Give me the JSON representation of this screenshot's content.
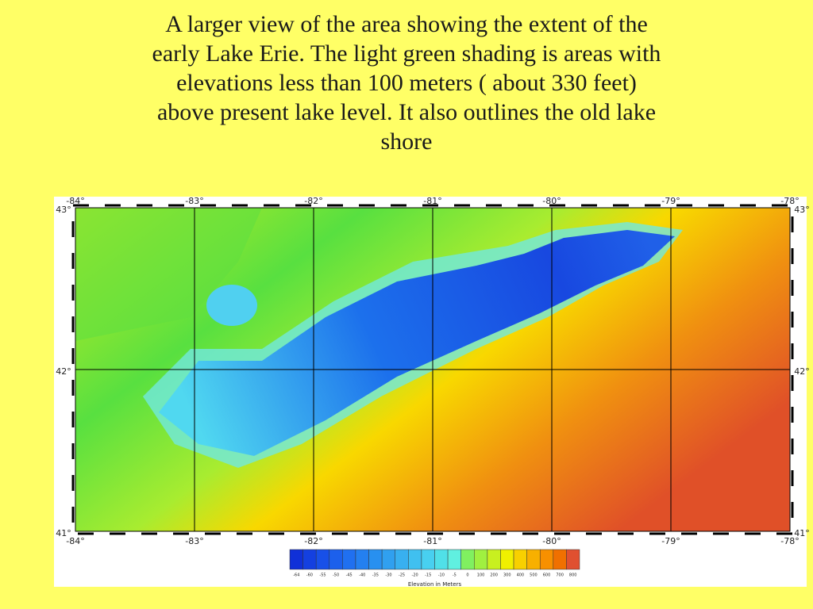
{
  "title_lines": [
    "A larger view of the area showing the extent of the",
    "early Lake Erie. The light green shading is areas with",
    "elevations less than 100 meters ( about 330 feet)",
    "above present lake level. It also outlines the old lake",
    "shore"
  ],
  "map": {
    "lon_labels": [
      "-84°",
      "-83°",
      "-82°",
      "-81°",
      "-80°",
      "-79°",
      "-78°"
    ],
    "lat_labels": [
      "43°",
      "42°",
      "41°"
    ],
    "colorbar": {
      "labels": [
        -64,
        -60,
        -55,
        -50,
        -45,
        -40,
        -35,
        -30,
        -25,
        -20,
        -15,
        -10,
        -5,
        0,
        100,
        200,
        300,
        400,
        500,
        600,
        700,
        800
      ],
      "colors": [
        "#1030d8",
        "#1440e0",
        "#1850e8",
        "#1c60ec",
        "#2070f0",
        "#2480f0",
        "#2890f0",
        "#30a0f0",
        "#38b0f0",
        "#40c0f0",
        "#48d0f0",
        "#50e0e8",
        "#60f0e0",
        "#80f060",
        "#a0f040",
        "#c8f020",
        "#f0f000",
        "#f8d000",
        "#f8b000",
        "#f89000",
        "#f07000",
        "#e05030"
      ],
      "title": "Elevation in Meters"
    }
  }
}
